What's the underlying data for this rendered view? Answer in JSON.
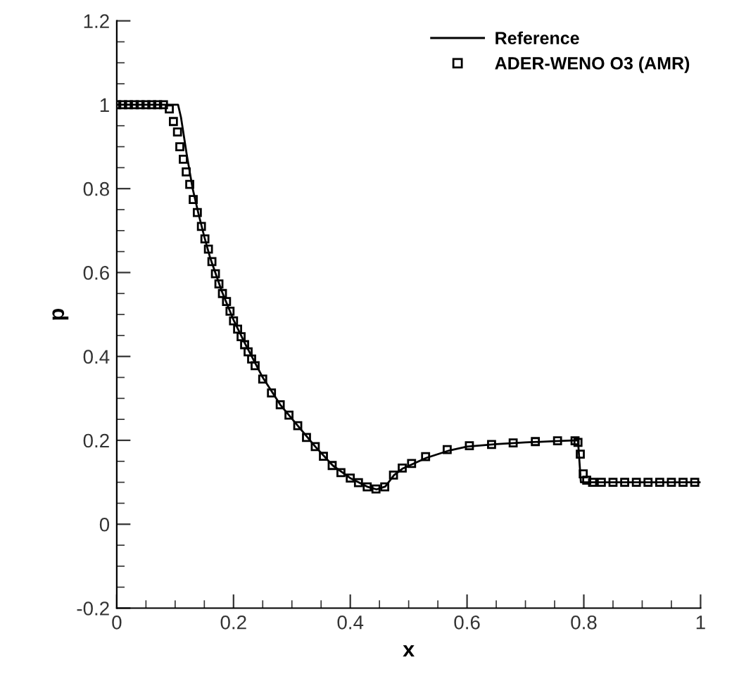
{
  "chart_data": {
    "type": "line",
    "xlabel": "x",
    "ylabel": "p",
    "xlim": [
      0,
      1
    ],
    "xticks": [
      0,
      0.2,
      0.4,
      0.6,
      0.8,
      1
    ],
    "ylim": [
      -0.2,
      1.2
    ],
    "yticks": [
      -0.2,
      0,
      0.2,
      0.4,
      0.6,
      0.8,
      1,
      1.2
    ],
    "grid": false,
    "legend": "top right",
    "series": [
      {
        "name": "Reference",
        "color": "#000000",
        "marker": "none",
        "line_style": "solid",
        "x": [
          0,
          0.105,
          0.11,
          0.12,
          0.13,
          0.14,
          0.15,
          0.16,
          0.18,
          0.2,
          0.22,
          0.25,
          0.28,
          0.31,
          0.34,
          0.37,
          0.4,
          0.43,
          0.445,
          0.46,
          0.475,
          0.49,
          0.53,
          0.57,
          0.6,
          0.65,
          0.7,
          0.75,
          0.79,
          0.795,
          1
        ],
        "values": [
          1,
          1,
          0.97,
          0.88,
          0.8,
          0.74,
          0.685,
          0.635,
          0.555,
          0.487,
          0.43,
          0.35,
          0.285,
          0.235,
          0.185,
          0.14,
          0.11,
          0.089,
          0.083,
          0.09,
          0.117,
          0.133,
          0.158,
          0.176,
          0.185,
          0.191,
          0.195,
          0.198,
          0.2,
          0.1,
          0.1
        ]
      },
      {
        "name": "ADER-WENO O3 (AMR)",
        "type": "scatter",
        "color": "#000000",
        "marker": "square",
        "x": [
          0,
          0.01,
          0.02,
          0.03,
          0.04,
          0.05,
          0.06,
          0.07,
          0.08,
          0.09,
          0.097,
          0.104,
          0.108,
          0.114,
          0.119,
          0.125,
          0.131,
          0.138,
          0.145,
          0.151,
          0.157,
          0.163,
          0.169,
          0.175,
          0.181,
          0.188,
          0.194,
          0.2,
          0.207,
          0.213,
          0.219,
          0.225,
          0.231,
          0.237,
          0.25,
          0.265,
          0.28,
          0.295,
          0.31,
          0.325,
          0.34,
          0.354,
          0.369,
          0.384,
          0.4,
          0.414,
          0.429,
          0.444,
          0.459,
          0.474,
          0.489,
          0.505,
          0.529,
          0.566,
          0.604,
          0.642,
          0.679,
          0.717,
          0.755,
          0.785,
          0.79,
          0.794,
          0.799,
          0.805,
          0.815,
          0.83,
          0.85,
          0.87,
          0.89,
          0.91,
          0.93,
          0.95,
          0.97,
          0.99
        ],
        "values": [
          1,
          1,
          1,
          1,
          1,
          1,
          1,
          1,
          1,
          0.99,
          0.96,
          0.935,
          0.9,
          0.87,
          0.84,
          0.81,
          0.774,
          0.743,
          0.71,
          0.68,
          0.656,
          0.626,
          0.597,
          0.573,
          0.55,
          0.531,
          0.508,
          0.485,
          0.465,
          0.447,
          0.428,
          0.411,
          0.394,
          0.378,
          0.346,
          0.313,
          0.285,
          0.26,
          0.235,
          0.207,
          0.185,
          0.162,
          0.14,
          0.123,
          0.11,
          0.099,
          0.089,
          0.084,
          0.089,
          0.117,
          0.134,
          0.145,
          0.161,
          0.178,
          0.187,
          0.19,
          0.194,
          0.197,
          0.199,
          0.199,
          0.195,
          0.167,
          0.12,
          0.105,
          0.1,
          0.1,
          0.1,
          0.1,
          0.1,
          0.1,
          0.1,
          0.1,
          0.1,
          0.1
        ]
      }
    ]
  }
}
